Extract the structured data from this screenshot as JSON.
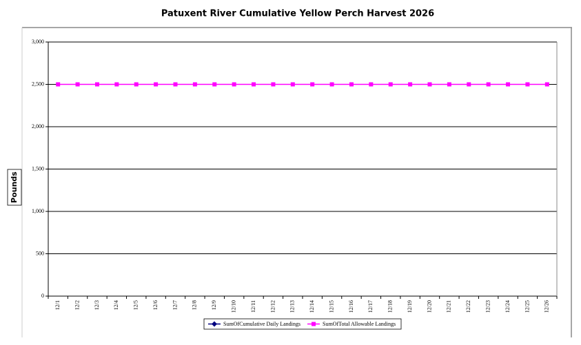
{
  "chart_data": {
    "type": "line",
    "title": "Patuxent River Cumulative Yellow Perch Harvest 2026",
    "y_label": "Pounds",
    "categories": [
      "12/1",
      "12/2",
      "12/3",
      "12/4",
      "12/5",
      "12/6",
      "12/7",
      "12/8",
      "12/9",
      "12/10",
      "12/11",
      "12/12",
      "12/13",
      "12/14",
      "12/15",
      "12/16",
      "12/17",
      "12/18",
      "12/19",
      "12/20",
      "12/21",
      "12/22",
      "12/23",
      "12/24",
      "12/25",
      "12/26"
    ],
    "series": [
      {
        "name": "SumOfCumulative Daily Landings",
        "color": "#000080",
        "marker": "diamond",
        "values": [
          null,
          null,
          null,
          null,
          null,
          null,
          null,
          null,
          null,
          null,
          null,
          null,
          null,
          null,
          null,
          null,
          null,
          null,
          null,
          null,
          null,
          null,
          null,
          null,
          null,
          null
        ]
      },
      {
        "name": "SumOfTotal Allowable Landings",
        "color": "#ff00ff",
        "marker": "square",
        "values": [
          2500,
          2500,
          2500,
          2500,
          2500,
          2500,
          2500,
          2500,
          2500,
          2500,
          2500,
          2500,
          2500,
          2500,
          2500,
          2500,
          2500,
          2500,
          2500,
          2500,
          2500,
          2500,
          2500,
          2500,
          2500,
          2500
        ]
      }
    ],
    "ylim": [
      0,
      3000
    ],
    "yticks": [
      0,
      500,
      {
        "value": 1000,
        "label": "1,000"
      },
      {
        "value": 1500,
        "label": "1,500"
      },
      {
        "value": 2000,
        "label": "2,000"
      },
      {
        "value": 2500,
        "label": "2,500"
      },
      {
        "value": 3000,
        "label": "3,000"
      }
    ],
    "grid": true,
    "legend": "bottom"
  }
}
